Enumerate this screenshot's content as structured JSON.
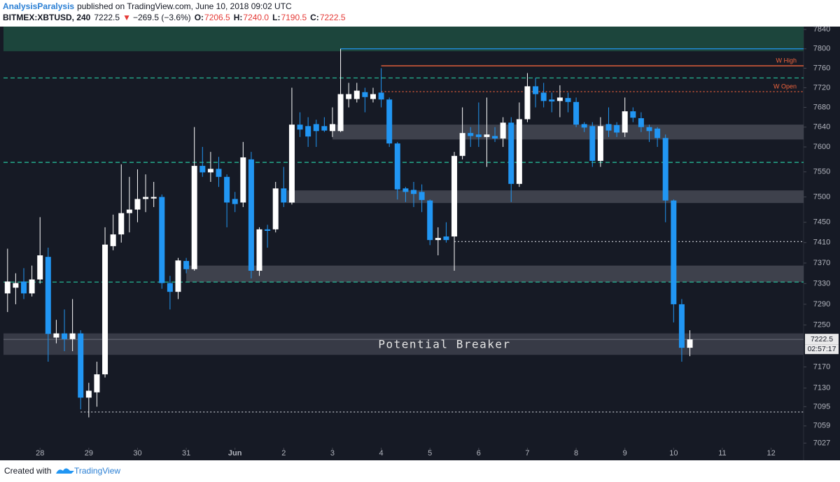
{
  "header": {
    "author": "AnalysisParalysis",
    "published": "published on TradingView.com, June 10, 2018 09:02 UTC",
    "symbol": "BITMEX:XBTUSD, 240",
    "last": "7222.5",
    "arrow": "▼",
    "change": "−269.5 (−3.6%)",
    "ohlc": [
      {
        "label": "O:",
        "value": "7206.5"
      },
      {
        "label": "H:",
        "value": "7240.0"
      },
      {
        "label": "L:",
        "value": "7190.5"
      },
      {
        "label": "C:",
        "value": "7222.5"
      }
    ]
  },
  "footer": {
    "created": "Created with",
    "brand": "TradingView"
  },
  "chart_data": {
    "type": "candlestick",
    "log_scale": true,
    "up_color": "#ffffff",
    "down_color": "#2196f3",
    "ylim": [
      6995,
      7846
    ],
    "yticks": [
      7027,
      7059,
      7095,
      7130,
      7170,
      7250,
      7290,
      7330,
      7370,
      7410,
      7450,
      7500,
      7550,
      7600,
      7640,
      7680,
      7720,
      7760,
      7800,
      7840
    ],
    "xlim": [
      -0.5,
      98
    ],
    "xticks": [
      {
        "value": 4,
        "label": "28"
      },
      {
        "value": 10,
        "label": "29"
      },
      {
        "value": 16,
        "label": "30"
      },
      {
        "value": 22,
        "label": "31"
      },
      {
        "value": 28,
        "label": "Jun"
      },
      {
        "value": 34,
        "label": "2"
      },
      {
        "value": 40,
        "label": "3"
      },
      {
        "value": 46,
        "label": "4"
      },
      {
        "value": 52,
        "label": "5"
      },
      {
        "value": 58,
        "label": "6"
      },
      {
        "value": 64,
        "label": "7"
      },
      {
        "value": 70,
        "label": "8"
      },
      {
        "value": 76,
        "label": "9"
      },
      {
        "value": 82,
        "label": "10"
      },
      {
        "value": 88,
        "label": "11"
      },
      {
        "value": 94,
        "label": "12"
      }
    ],
    "open": [
      7311,
      7322,
      7334,
      7311,
      7338,
      7382,
      7226,
      7234,
      7223,
      7234,
      7112,
      7122,
      7156,
      7403,
      7426,
      7468,
      7475,
      7496,
      7497,
      7500,
      7331,
      7314,
      7374,
      7358,
      7562,
      7549,
      7556,
      7540,
      7496,
      7489,
      7575,
      7355,
      7436,
      7436,
      7517,
      7489,
      7645,
      7642,
      7646,
      7642,
      7632,
      7632,
      7697,
      7697,
      7711,
      7697,
      7710,
      7696,
      7607,
      7517,
      7514,
      7510,
      7493,
      7415,
      7422,
      7422,
      7582,
      7628,
      7625,
      7620,
      7622,
      7617,
      7649,
      7526,
      7656,
      7723,
      7710,
      7696,
      7693,
      7699,
      7691,
      7646,
      7642,
      7572,
      7646,
      7644,
      7629,
      7672,
      7658,
      7640,
      7637,
      7618,
      7493,
      7290,
      7206.5
    ],
    "high": [
      7398,
      7350,
      7360,
      7365,
      7460,
      7400,
      7260,
      7280,
      7300,
      7240,
      7140,
      7180,
      7440,
      7465,
      7565,
      7540,
      7555,
      7545,
      7530,
      7505,
      7345,
      7380,
      7380,
      7640,
      7600,
      7590,
      7580,
      7545,
      7510,
      7610,
      7590,
      7440,
      7445,
      7530,
      7560,
      7720,
      7670,
      7660,
      7655,
      7660,
      7680,
      7800,
      7730,
      7730,
      7720,
      7720,
      7760,
      7700,
      7610,
      7520,
      7530,
      7525,
      7495,
      7440,
      7450,
      7590,
      7680,
      7640,
      7690,
      7700,
      7640,
      7660,
      7660,
      7690,
      7750,
      7740,
      7730,
      7710,
      7725,
      7710,
      7700,
      7650,
      7650,
      7660,
      7680,
      7650,
      7700,
      7680,
      7670,
      7645,
      7640,
      7625,
      7495,
      7300,
      7240
    ],
    "low": [
      7275,
      7290,
      7300,
      7305,
      7330,
      7180,
      7215,
      7200,
      7200,
      7090,
      7075,
      7095,
      7150,
      7395,
      7410,
      7430,
      7450,
      7470,
      7480,
      7320,
      7280,
      7300,
      7350,
      7355,
      7540,
      7530,
      7520,
      7440,
      7470,
      7480,
      7340,
      7345,
      7400,
      7430,
      7480,
      7485,
      7620,
      7600,
      7600,
      7630,
      7620,
      7630,
      7680,
      7690,
      7670,
      7690,
      7680,
      7600,
      7495,
      7490,
      7480,
      7470,
      7405,
      7385,
      7410,
      7355,
      7575,
      7600,
      7600,
      7560,
      7610,
      7600,
      7490,
      7520,
      7650,
      7680,
      7680,
      7670,
      7660,
      7670,
      7640,
      7630,
      7560,
      7560,
      7620,
      7620,
      7620,
      7650,
      7630,
      7610,
      7600,
      7450,
      7255,
      7180,
      7190.5
    ],
    "close": [
      7334,
      7331,
      7311,
      7338,
      7385,
      7233,
      7234,
      7223,
      7234,
      7112,
      7125,
      7156,
      7406,
      7426,
      7468,
      7475,
      7496,
      7500,
      7500,
      7331,
      7314,
      7375,
      7358,
      7562,
      7549,
      7556,
      7540,
      7489,
      7486,
      7579,
      7355,
      7436,
      7433,
      7517,
      7489,
      7645,
      7635,
      7621,
      7632,
      7633,
      7646,
      7707,
      7707,
      7714,
      7701,
      7707,
      7696,
      7607,
      7515,
      7510,
      7506,
      7494,
      7415,
      7419,
      7415,
      7582,
      7628,
      7622,
      7620,
      7625,
      7617,
      7649,
      7526,
      7656,
      7723,
      7707,
      7693,
      7692,
      7700,
      7691,
      7645,
      7639,
      7572,
      7642,
      7633,
      7629,
      7672,
      7659,
      7640,
      7632,
      7618,
      7493,
      7290,
      7206.5,
      7222.5
    ],
    "zones": [
      {
        "from": 7795,
        "to": 7846,
        "start": -0.5,
        "color": "#1d4a3f"
      },
      {
        "from": 7615,
        "to": 7645,
        "start": 40,
        "color": "#434651"
      },
      {
        "from": 7488,
        "to": 7513,
        "start": 34.4,
        "color": "#434651"
      },
      {
        "from": 7333,
        "to": 7365,
        "start": 22,
        "color": "#434651"
      },
      {
        "from": 7193,
        "to": 7234,
        "start": -0.5,
        "color": "#434651",
        "label": "Potential Breaker"
      }
    ],
    "lines": [
      {
        "value": 7800,
        "start": 41,
        "color": "#2196f3",
        "style": "solid"
      },
      {
        "value": 7765,
        "start": 46,
        "color": "#f0643c",
        "style": "solid",
        "label": "W High"
      },
      {
        "value": 7712,
        "start": 46,
        "color": "#f0643c",
        "style": "dotted",
        "label": "W Open"
      },
      {
        "value": 7740,
        "start": -0.5,
        "color": "#26c6a0",
        "style": "dashed"
      },
      {
        "value": 7569,
        "start": -0.5,
        "color": "#26c6a0",
        "style": "dashed"
      },
      {
        "value": 7333,
        "start": -0.5,
        "color": "#26c6a0",
        "style": "dashed"
      },
      {
        "value": 7412,
        "start": 55,
        "color": "#d1d4dc",
        "style": "dotted"
      },
      {
        "value": 7085,
        "start": 9,
        "color": "#d1d4dc",
        "style": "dotted"
      }
    ],
    "last_price": 7222.5,
    "countdown": "02:57:17"
  }
}
